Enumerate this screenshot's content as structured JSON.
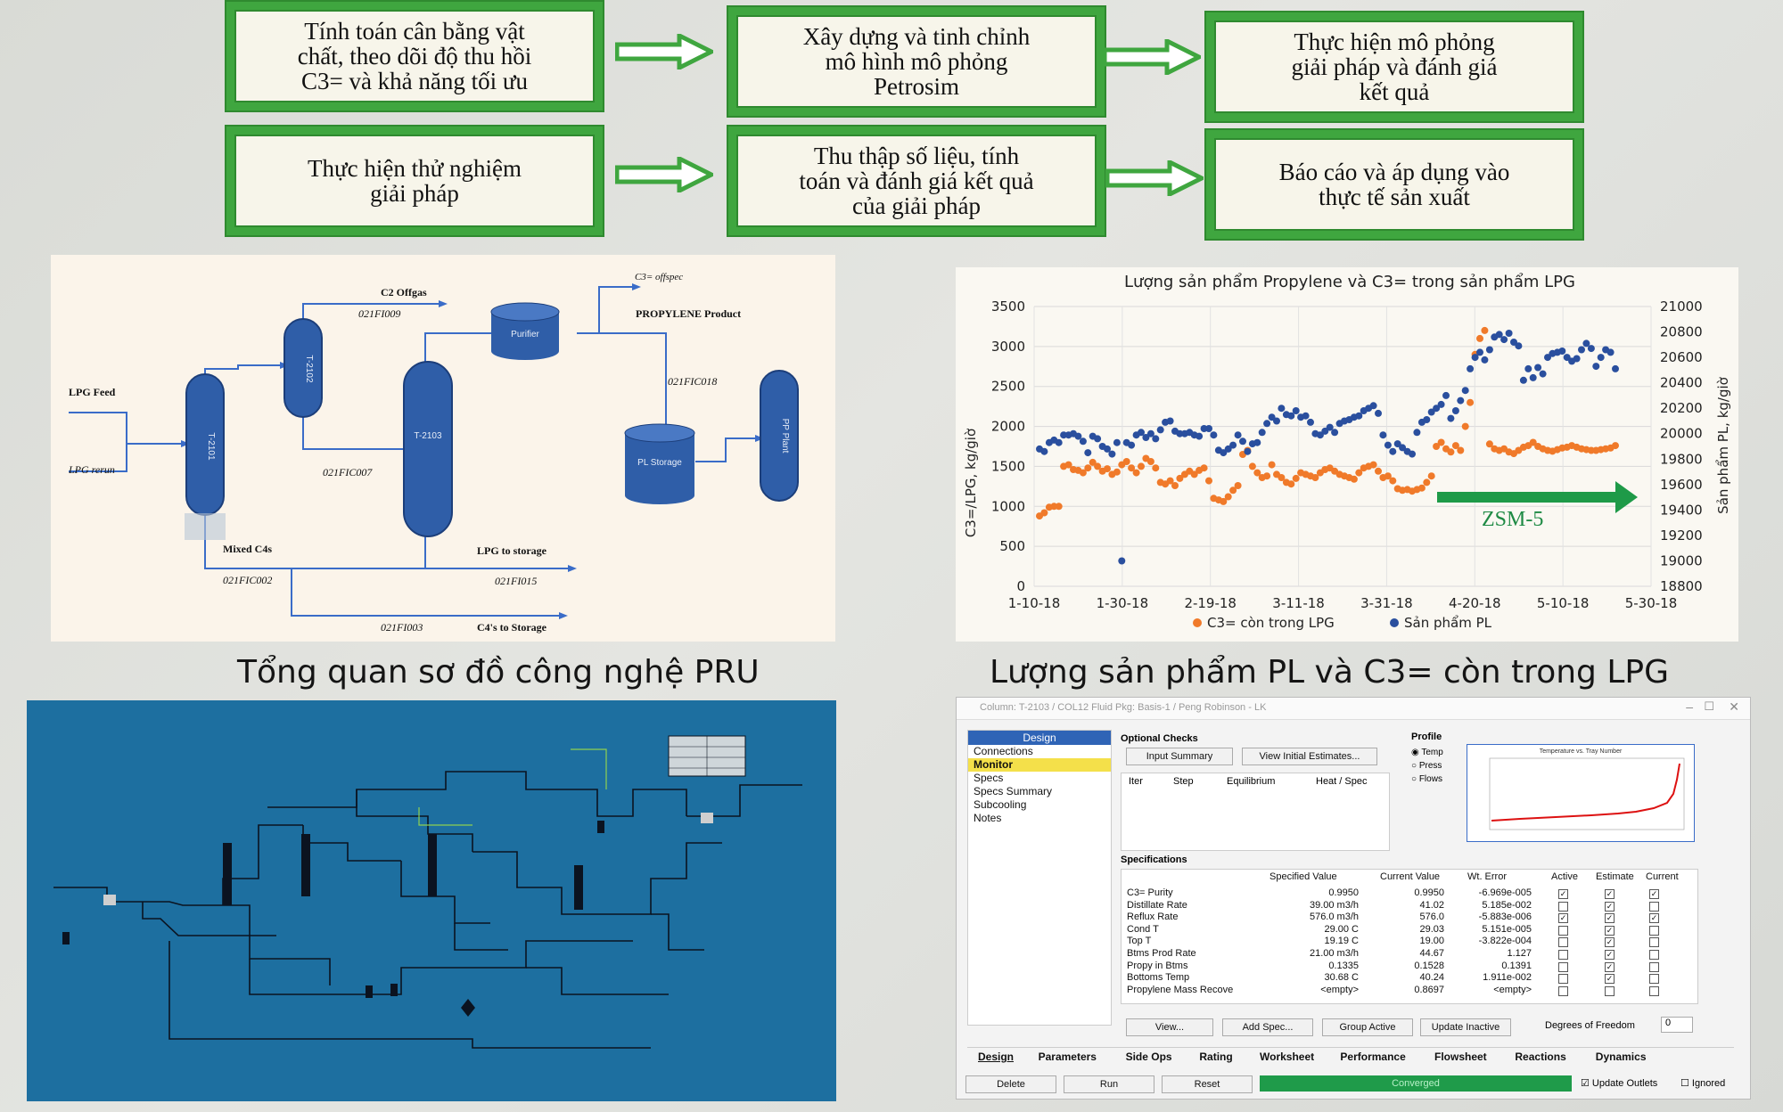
{
  "flow": {
    "box1": [
      "Tính toán cân bằng vật",
      "chất, theo dõi độ thu hồi",
      "C3= và khả năng tối ưu"
    ],
    "box2": [
      "Xây dựng và tinh chỉnh",
      "mô hình mô phỏng",
      "Petrosim"
    ],
    "box3": [
      "Thực hiện mô phỏng",
      "giải pháp và đánh giá",
      "kết quả"
    ],
    "box4": [
      "Thực hiện thử nghiệm",
      "giải pháp"
    ],
    "box5": [
      "Thu thập số liệu, tính",
      "toán và đánh giá kết quả",
      "của giải pháp"
    ],
    "box6": [
      "Báo cáo và áp dụng vào",
      "thực tế sản xuất"
    ],
    "accent": "#3fa63f"
  },
  "pfd": {
    "c2_offgas": "C2 Offgas",
    "fi009": "021FI009",
    "c3_offspec": "C3= offspec",
    "propylene_product": "PROPYLENE Product",
    "lpg_feed": "LPG Feed",
    "lpg_rerun": "LPG rerun",
    "t2101": "T-2101",
    "t2102": "T-2102",
    "t2103": "T-2103",
    "purifier": "Purifier",
    "pl_storage": "PL Storage",
    "pp_plant": "PP Plant",
    "fic018": "021FIC018",
    "fic007": "021FIC007",
    "mixed_c4s": "Mixed C4s",
    "lpg_to_storage": "LPG to storage",
    "fic002": "021FIC002",
    "fi015": "021FI015",
    "fi003": "021FI003",
    "c4s_to_storage": "C4's to Storage",
    "vessel_color": "#2f5ea8"
  },
  "captions": {
    "pfd": "Tổng quan sơ đồ công nghệ PRU",
    "chart": "Lượng sản phẩm PL và C3= còn trong LPG"
  },
  "chart_data": {
    "type": "scatter",
    "title": "Lượng sản phẩm Propylene và C3= trong sản phẩm LPG",
    "ylabel": "C3=/LPG, kg/giờ",
    "y2label": "Sản phẩm PL, kg/giờ",
    "ylim": [
      0,
      3500
    ],
    "y2lim": [
      18800,
      21000
    ],
    "yticks": [
      "0",
      "500",
      "1000",
      "1500",
      "2000",
      "2500",
      "3000",
      "3500"
    ],
    "y2ticks": [
      "18800",
      "19000",
      "19200",
      "19400",
      "19600",
      "19800",
      "20000",
      "20200",
      "20400",
      "20600",
      "20800",
      "21000"
    ],
    "xticks": [
      "1-10-18",
      "1-30-18",
      "2-19-18",
      "3-11-18",
      "3-31-18",
      "4-20-18",
      "5-10-18",
      "5-30-18"
    ],
    "xstart": "2018-01-10",
    "xend": "2018-05-30",
    "annotation": "ZSM-5",
    "legend": [
      "C3= còn trong LPG",
      "Sản phẩm PL"
    ],
    "legend_position": "bottom",
    "series": [
      {
        "name": "C3= còn trong LPG",
        "color": "#f07a2a",
        "axis": "left",
        "values": [
          880,
          920,
          990,
          1000,
          1000,
          1500,
          1520,
          1460,
          1450,
          1420,
          1480,
          1550,
          1500,
          1440,
          1470,
          1400,
          1430,
          1520,
          1560,
          1480,
          1420,
          1500,
          1600,
          1560,
          1480,
          1300,
          1280,
          1320,
          1260,
          1350,
          1400,
          1440,
          1400,
          1450,
          1480,
          1320,
          1100,
          1080,
          1060,
          1120,
          1200,
          1260,
          1650,
          1700,
          1500,
          1420,
          1360,
          1380,
          1520,
          1400,
          1360,
          1300,
          1280,
          1350,
          1420,
          1400,
          1380,
          1360,
          1420,
          1460,
          1480,
          1440,
          1400,
          1380,
          1360,
          1340,
          1420,
          1480,
          1500,
          1520,
          1440,
          1360,
          1380,
          1320,
          1220,
          1200,
          1210,
          1190,
          1210,
          1230,
          1300,
          1380,
          1750,
          1800,
          1720,
          1680,
          1760,
          1700,
          2000,
          2300,
          2900,
          3100,
          3200,
          1780,
          1720,
          1700,
          1720,
          1680,
          1660,
          1700,
          1740,
          1760,
          1800,
          1750,
          1720,
          1700,
          1690,
          1710,
          1730,
          1740,
          1760,
          1740,
          1720,
          1710,
          1700,
          1700,
          1710,
          1720,
          1730,
          1760
        ]
      },
      {
        "name": "Sản phẩm PL",
        "color": "#2a4f9e",
        "axis": "right",
        "values": [
          19880,
          19860,
          19930,
          19950,
          19930,
          19990,
          19990,
          20000,
          19980,
          19940,
          19850,
          19980,
          19960,
          19900,
          19880,
          19840,
          19930,
          19000,
          19930,
          19910,
          19990,
          20010,
          19970,
          20000,
          19960,
          20030,
          20090,
          20100,
          20020,
          20000,
          20000,
          20010,
          19990,
          19980,
          20040,
          20040,
          19990,
          19870,
          19850,
          19880,
          19910,
          19990,
          19940,
          19860,
          19920,
          19930,
          20010,
          20080,
          20130,
          20100,
          20200,
          20150,
          20140,
          20180,
          20130,
          20140,
          20090,
          20000,
          19990,
          20020,
          20050,
          20010,
          20080,
          20100,
          20110,
          20130,
          20140,
          20180,
          20200,
          20220,
          20160,
          19990,
          19910,
          19860,
          19920,
          19890,
          19860,
          19840,
          20010,
          20090,
          20110,
          20170,
          20200,
          20230,
          20300,
          20120,
          20180,
          20260,
          20340,
          20510,
          20600,
          20640,
          20580,
          20660,
          20760,
          20780,
          20740,
          20790,
          20720,
          20690,
          20420,
          20510,
          20440,
          20520,
          20470,
          20600,
          20630,
          20640,
          20650,
          20600,
          20570,
          20590,
          20660,
          20710,
          20670,
          20530,
          20600,
          20660,
          20640,
          20510
        ]
      }
    ]
  },
  "sim": {
    "window_title": "Column: T-2103 / COL12 Fluid Pkg: Basis-1 / Peng Robinson - LK",
    "nav_header": "Design",
    "nav": [
      "Connections",
      "Monitor",
      "Specs",
      "Specs Summary",
      "Subcooling",
      "Notes"
    ],
    "optional_checks": "Optional Checks",
    "input_summary": "Input Summary",
    "view_initial": "View Initial Estimates...",
    "iter_cols": [
      "Iter",
      "Step",
      "Equilibrium",
      "Heat / Spec"
    ],
    "profile": "Profile",
    "profile_opts": [
      "Temp",
      "Press",
      "Flows"
    ],
    "profile_chart_title": "Temperature vs. Tray Number",
    "specifications": "Specifications",
    "spec_cols": [
      "Specified Value",
      "Current Value",
      "Wt. Error",
      "Active",
      "Estimate",
      "Current"
    ],
    "specs": [
      {
        "name": "C3= Purity",
        "spec": "0.9950",
        "cur": "0.9950",
        "err": "-6.969e-005",
        "a": true,
        "e": true,
        "c": true
      },
      {
        "name": "Distillate Rate",
        "spec": "39.00 m3/h",
        "cur": "41.02",
        "err": "5.185e-002",
        "a": false,
        "e": true,
        "c": false
      },
      {
        "name": "Reflux Rate",
        "spec": "576.0 m3/h",
        "cur": "576.0",
        "err": "-5.883e-006",
        "a": true,
        "e": true,
        "c": true
      },
      {
        "name": "Cond T",
        "spec": "29.00 C",
        "cur": "29.03",
        "err": "5.151e-005",
        "a": false,
        "e": true,
        "c": false
      },
      {
        "name": "Top T",
        "spec": "19.19 C",
        "cur": "19.00",
        "err": "-3.822e-004",
        "a": false,
        "e": true,
        "c": false
      },
      {
        "name": "Btms Prod Rate",
        "spec": "21.00 m3/h",
        "cur": "44.67",
        "err": "1.127",
        "a": false,
        "e": true,
        "c": false
      },
      {
        "name": "Propy in Btms",
        "spec": "0.1335",
        "cur": "0.1528",
        "err": "0.1391",
        "a": false,
        "e": true,
        "c": false
      },
      {
        "name": "Bottoms Temp",
        "spec": "30.68 C",
        "cur": "40.24",
        "err": "1.911e-002",
        "a": false,
        "e": true,
        "c": false
      },
      {
        "name": "Propylene Mass Recove",
        "spec": "<empty>",
        "cur": "0.8697",
        "err": "<empty>",
        "a": false,
        "e": false,
        "c": false
      }
    ],
    "view_btn": "View...",
    "add_spec": "Add Spec...",
    "group_active": "Group Active",
    "update_inactive": "Update Inactive",
    "dof_label": "Degrees of Freedom",
    "dof_value": "0",
    "tabs": [
      "Design",
      "Parameters",
      "Side Ops",
      "Rating",
      "Worksheet",
      "Performance",
      "Flowsheet",
      "Reactions",
      "Dynamics"
    ],
    "delete": "Delete",
    "run": "Run",
    "reset": "Reset",
    "status": "Converged",
    "update_outlets": "Update Outlets",
    "ignored": "Ignored"
  }
}
